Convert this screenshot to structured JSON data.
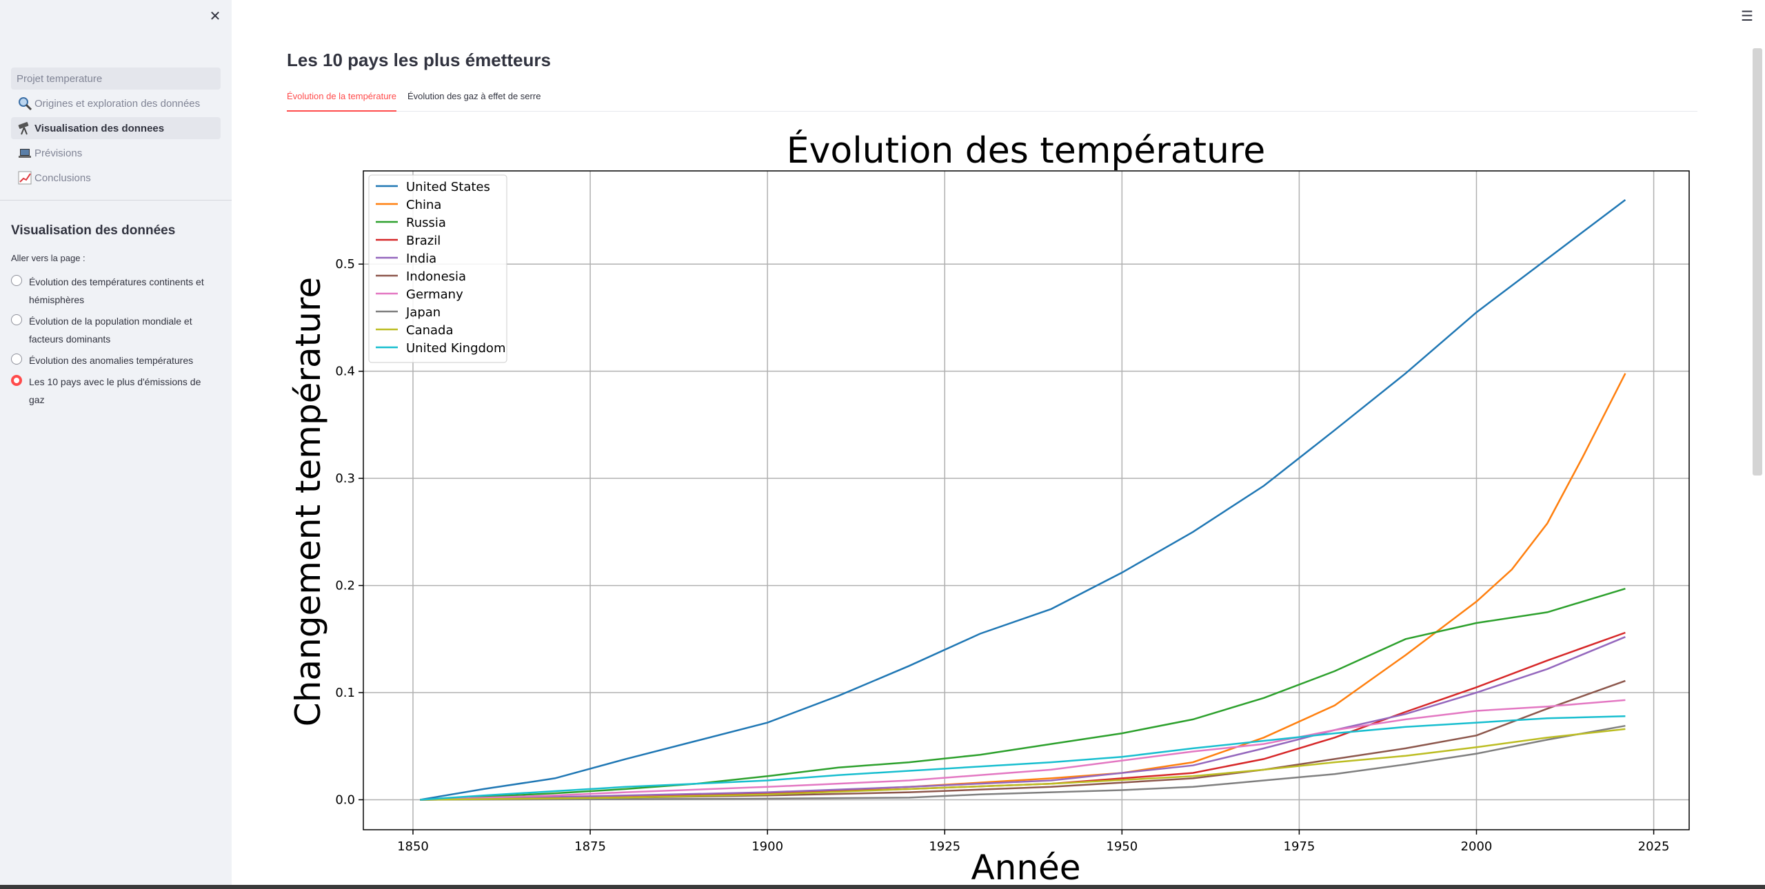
{
  "sidebar": {
    "nav": [
      {
        "label": "Projet temperature",
        "icon": "",
        "state": "header"
      },
      {
        "label": "Origines et exploration des données",
        "icon": "magnifier-icon",
        "state": ""
      },
      {
        "label": "Visualisation des donnees",
        "icon": "telescope-icon",
        "state": "active"
      },
      {
        "label": "Prévisions",
        "icon": "laptop-icon",
        "state": ""
      },
      {
        "label": "Conclusions",
        "icon": "chart-icon",
        "state": ""
      }
    ],
    "section_title": "Visualisation des données",
    "radio_label": "Aller vers la page :",
    "radio_options": [
      {
        "label": "Évolution des températures continents et hémisphères",
        "checked": false
      },
      {
        "label": "Évolution de la population mondiale et facteurs dominants",
        "checked": false
      },
      {
        "label": "Évolution des anomalies températures",
        "checked": false
      },
      {
        "label": "Les 10 pays avec le plus d'émissions de gaz",
        "checked": true
      }
    ],
    "accent_color": "#ff4b4b"
  },
  "main": {
    "title": "Les 10 pays les plus émetteurs",
    "tabs": [
      {
        "label": "Évolution de la température",
        "active": true
      },
      {
        "label": "Évolution des gaz à effet de serre",
        "active": false
      }
    ]
  },
  "chart_data": {
    "type": "line",
    "title": "Évolution des température",
    "xlabel": "Année",
    "ylabel": "Changement température",
    "xlim": [
      1843,
      2030
    ],
    "ylim": [
      -0.028,
      0.587
    ],
    "xticks": [
      1850,
      1875,
      1900,
      1925,
      1950,
      1975,
      2000,
      2025
    ],
    "yticks": [
      0.0,
      0.1,
      0.2,
      0.3,
      0.4,
      0.5
    ],
    "grid": true,
    "legend_position": "top-left",
    "series": [
      {
        "name": "United States",
        "color": "#1f77b4",
        "points": [
          [
            1851,
            0
          ],
          [
            1860,
            0.01
          ],
          [
            1870,
            0.02
          ],
          [
            1880,
            0.038
          ],
          [
            1890,
            0.055
          ],
          [
            1900,
            0.072
          ],
          [
            1910,
            0.097
          ],
          [
            1920,
            0.125
          ],
          [
            1930,
            0.155
          ],
          [
            1940,
            0.178
          ],
          [
            1950,
            0.212
          ],
          [
            1960,
            0.25
          ],
          [
            1970,
            0.293
          ],
          [
            1980,
            0.345
          ],
          [
            1990,
            0.398
          ],
          [
            2000,
            0.455
          ],
          [
            2010,
            0.505
          ],
          [
            2021,
            0.56
          ]
        ]
      },
      {
        "name": "China",
        "color": "#ff7f0e",
        "points": [
          [
            1851,
            0
          ],
          [
            1880,
            0.003
          ],
          [
            1900,
            0.006
          ],
          [
            1920,
            0.012
          ],
          [
            1940,
            0.02
          ],
          [
            1950,
            0.025
          ],
          [
            1960,
            0.035
          ],
          [
            1970,
            0.058
          ],
          [
            1980,
            0.088
          ],
          [
            1990,
            0.135
          ],
          [
            2000,
            0.185
          ],
          [
            2005,
            0.215
          ],
          [
            2010,
            0.258
          ],
          [
            2015,
            0.32
          ],
          [
            2021,
            0.398
          ]
        ]
      },
      {
        "name": "Russia",
        "color": "#2ca02c",
        "points": [
          [
            1851,
            0
          ],
          [
            1870,
            0.006
          ],
          [
            1880,
            0.01
          ],
          [
            1890,
            0.015
          ],
          [
            1900,
            0.022
          ],
          [
            1910,
            0.03
          ],
          [
            1920,
            0.035
          ],
          [
            1930,
            0.042
          ],
          [
            1940,
            0.052
          ],
          [
            1950,
            0.062
          ],
          [
            1960,
            0.075
          ],
          [
            1970,
            0.095
          ],
          [
            1980,
            0.12
          ],
          [
            1990,
            0.15
          ],
          [
            2000,
            0.165
          ],
          [
            2010,
            0.175
          ],
          [
            2021,
            0.197
          ]
        ]
      },
      {
        "name": "Brazil",
        "color": "#d62728",
        "points": [
          [
            1851,
            0
          ],
          [
            1880,
            0.002
          ],
          [
            1900,
            0.006
          ],
          [
            1920,
            0.01
          ],
          [
            1940,
            0.015
          ],
          [
            1960,
            0.025
          ],
          [
            1970,
            0.038
          ],
          [
            1980,
            0.058
          ],
          [
            1990,
            0.082
          ],
          [
            2000,
            0.105
          ],
          [
            2010,
            0.13
          ],
          [
            2021,
            0.156
          ]
        ]
      },
      {
        "name": "India",
        "color": "#9467bd",
        "points": [
          [
            1851,
            0
          ],
          [
            1880,
            0.004
          ],
          [
            1900,
            0.007
          ],
          [
            1920,
            0.012
          ],
          [
            1940,
            0.018
          ],
          [
            1960,
            0.032
          ],
          [
            1970,
            0.048
          ],
          [
            1980,
            0.065
          ],
          [
            1990,
            0.08
          ],
          [
            2000,
            0.1
          ],
          [
            2010,
            0.122
          ],
          [
            2021,
            0.152
          ]
        ]
      },
      {
        "name": "Indonesia",
        "color": "#8c564b",
        "points": [
          [
            1851,
            0
          ],
          [
            1880,
            0.002
          ],
          [
            1900,
            0.004
          ],
          [
            1920,
            0.007
          ],
          [
            1940,
            0.012
          ],
          [
            1960,
            0.02
          ],
          [
            1970,
            0.028
          ],
          [
            1980,
            0.038
          ],
          [
            1990,
            0.048
          ],
          [
            2000,
            0.06
          ],
          [
            2010,
            0.085
          ],
          [
            2021,
            0.111
          ]
        ]
      },
      {
        "name": "Germany",
        "color": "#e377c2",
        "points": [
          [
            1851,
            0
          ],
          [
            1870,
            0.004
          ],
          [
            1880,
            0.007
          ],
          [
            1900,
            0.012
          ],
          [
            1920,
            0.018
          ],
          [
            1940,
            0.028
          ],
          [
            1960,
            0.045
          ],
          [
            1970,
            0.052
          ],
          [
            1980,
            0.065
          ],
          [
            1990,
            0.075
          ],
          [
            2000,
            0.083
          ],
          [
            2010,
            0.087
          ],
          [
            2021,
            0.093
          ]
        ]
      },
      {
        "name": "Japan",
        "color": "#7f7f7f",
        "points": [
          [
            1851,
            0
          ],
          [
            1900,
            0.001
          ],
          [
            1920,
            0.002
          ],
          [
            1930,
            0.005
          ],
          [
            1940,
            0.007
          ],
          [
            1950,
            0.009
          ],
          [
            1960,
            0.012
          ],
          [
            1970,
            0.018
          ],
          [
            1980,
            0.024
          ],
          [
            1990,
            0.033
          ],
          [
            2000,
            0.043
          ],
          [
            2010,
            0.056
          ],
          [
            2021,
            0.069
          ]
        ]
      },
      {
        "name": "Canada",
        "color": "#bcbd22",
        "points": [
          [
            1851,
            0
          ],
          [
            1880,
            0.002
          ],
          [
            1900,
            0.005
          ],
          [
            1920,
            0.01
          ],
          [
            1940,
            0.015
          ],
          [
            1960,
            0.022
          ],
          [
            1970,
            0.028
          ],
          [
            1980,
            0.035
          ],
          [
            1990,
            0.041
          ],
          [
            2000,
            0.049
          ],
          [
            2010,
            0.058
          ],
          [
            2021,
            0.066
          ]
        ]
      },
      {
        "name": "United Kingdom",
        "color": "#17becf",
        "points": [
          [
            1851,
            0
          ],
          [
            1860,
            0.004
          ],
          [
            1870,
            0.008
          ],
          [
            1880,
            0.012
          ],
          [
            1890,
            0.015
          ],
          [
            1900,
            0.018
          ],
          [
            1910,
            0.023
          ],
          [
            1920,
            0.027
          ],
          [
            1930,
            0.031
          ],
          [
            1940,
            0.035
          ],
          [
            1950,
            0.04
          ],
          [
            1960,
            0.048
          ],
          [
            1970,
            0.055
          ],
          [
            1980,
            0.062
          ],
          [
            1990,
            0.068
          ],
          [
            2000,
            0.072
          ],
          [
            2010,
            0.076
          ],
          [
            2021,
            0.078
          ]
        ]
      }
    ]
  }
}
